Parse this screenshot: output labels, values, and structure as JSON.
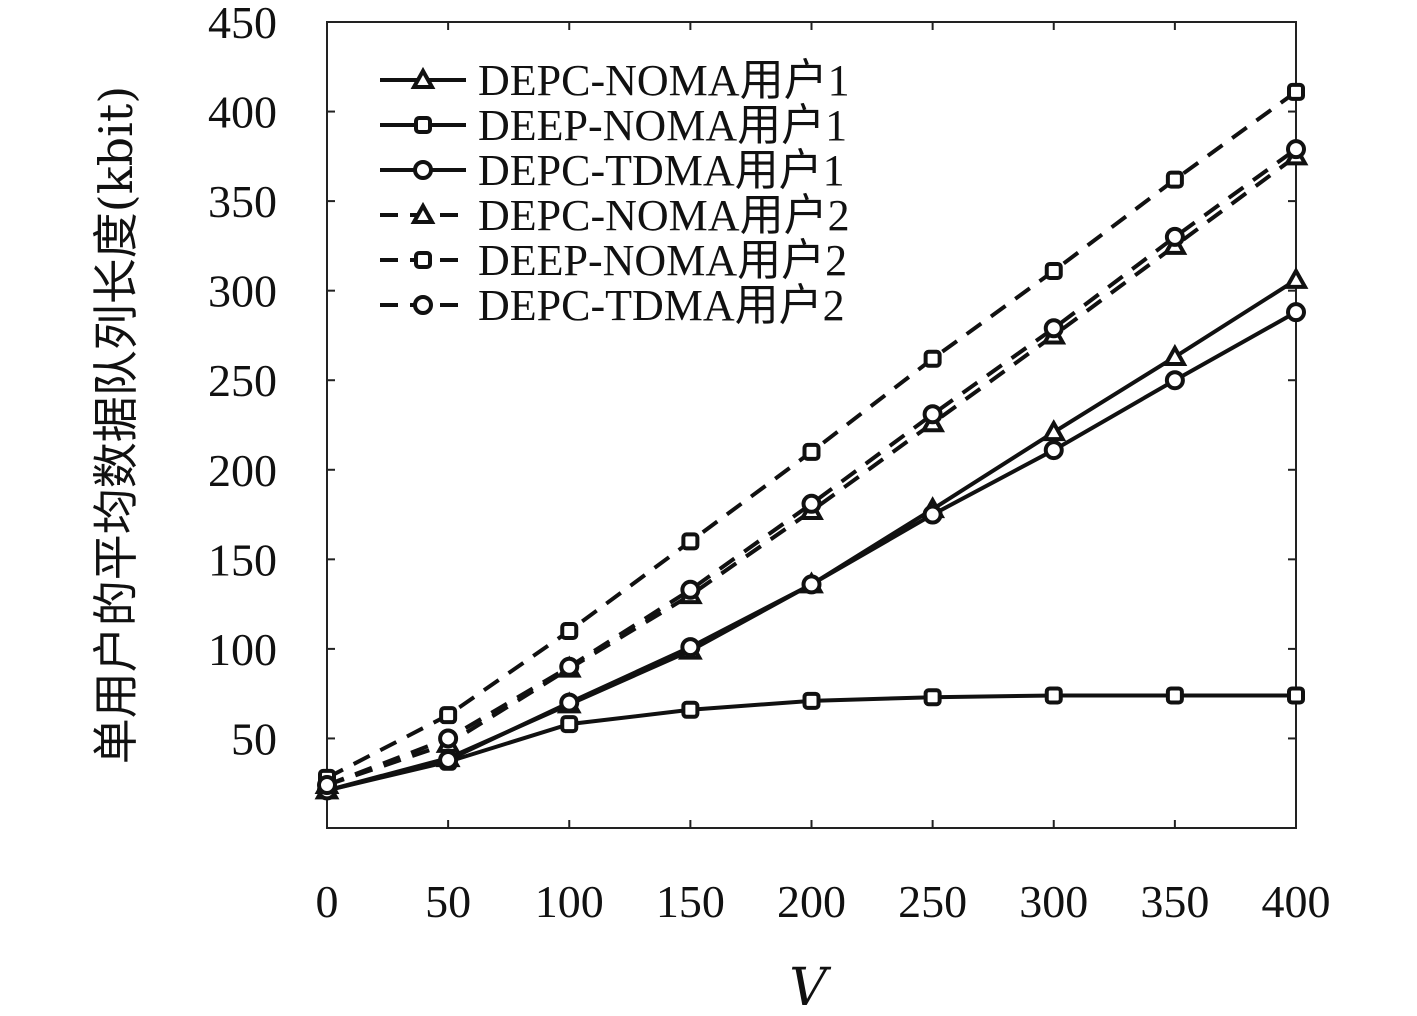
{
  "chart_data": {
    "type": "line",
    "title": "",
    "xlabel": "V",
    "ylabel": "单用户的平均数据队列长度(kbit)",
    "xlim": [
      0,
      400
    ],
    "ylim": [
      0,
      450
    ],
    "x": [
      0,
      50,
      100,
      150,
      200,
      250,
      300,
      350,
      400
    ],
    "xticks": [
      "0",
      "50",
      "100",
      "150",
      "200",
      "250",
      "300",
      "350",
      "400"
    ],
    "yticks": [
      50,
      100,
      150,
      200,
      250,
      300,
      350,
      400,
      450
    ],
    "ytick_labels": [
      "50",
      "100",
      "150",
      "200",
      "250",
      "300",
      "350",
      "400",
      "450"
    ],
    "legend_position": "top-left",
    "grid": false,
    "series": [
      {
        "name": "DEPC-NOMA用户1",
        "marker": "triangle",
        "dash": false,
        "values": [
          21,
          39,
          69,
          99,
          136,
          178,
          221,
          263,
          306
        ]
      },
      {
        "name": "DEEP-NOMA用户1",
        "marker": "square",
        "dash": false,
        "values": [
          21,
          37,
          58,
          66,
          71,
          73,
          74,
          74,
          74
        ]
      },
      {
        "name": "DEPC-TDMA用户1",
        "marker": "circle",
        "dash": false,
        "values": [
          21,
          38,
          70,
          101,
          136,
          175,
          211,
          250,
          288
        ]
      },
      {
        "name": "DEPC-NOMA用户2",
        "marker": "triangle",
        "dash": true,
        "values": [
          24,
          47,
          89,
          130,
          177,
          226,
          275,
          325,
          375
        ]
      },
      {
        "name": "DEEP-NOMA用户2",
        "marker": "square",
        "dash": true,
        "values": [
          28,
          63,
          110,
          160,
          210,
          262,
          311,
          362,
          411
        ]
      },
      {
        "name": "DEPC-TDMA用户2",
        "marker": "circle",
        "dash": true,
        "values": [
          24,
          50,
          90,
          133,
          181,
          231,
          279,
          330,
          379
        ]
      }
    ]
  }
}
